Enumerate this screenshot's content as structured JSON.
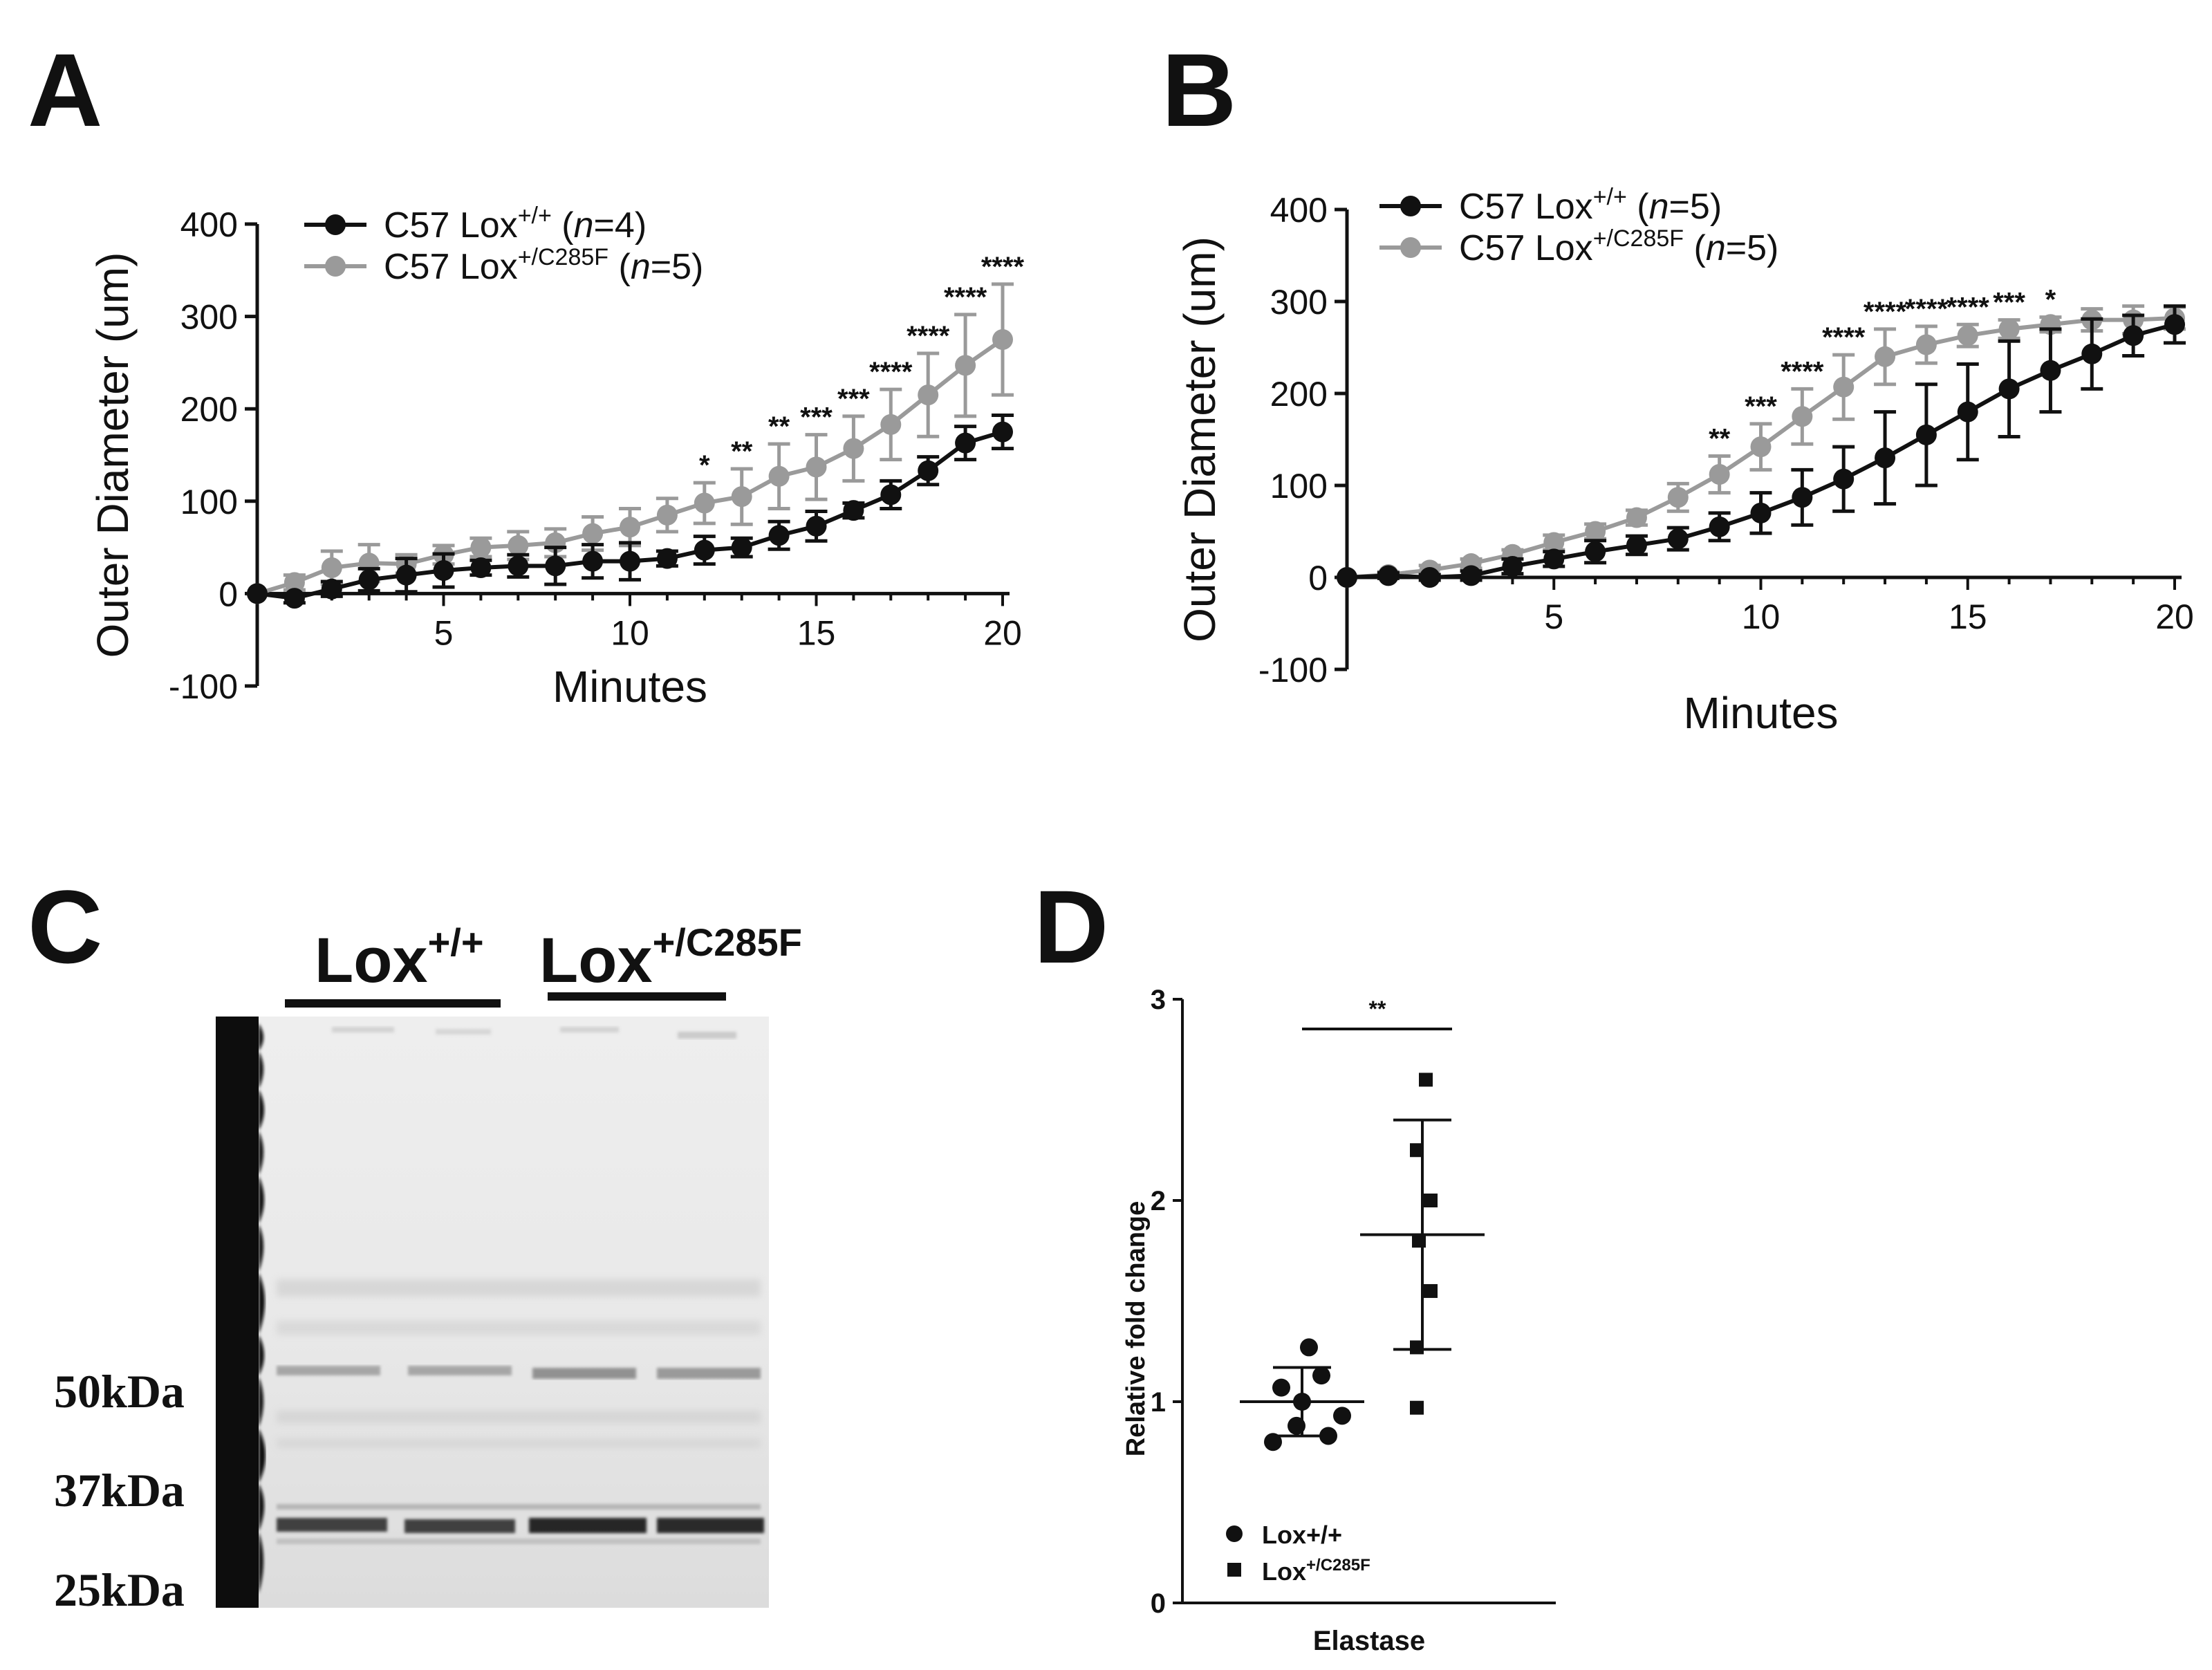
{
  "panels": [
    "A",
    "B",
    "C",
    "D"
  ],
  "chart_data": [
    {
      "panel": "A",
      "type": "line",
      "xlabel": "Minutes",
      "ylabel": "Outer Diameter (um)",
      "xticks": [
        5,
        10,
        15,
        20
      ],
      "yticks": [
        -100,
        0,
        100,
        200,
        300,
        400
      ],
      "xlim": [
        0,
        20
      ],
      "ylim": [
        -100,
        400
      ],
      "legend_position": "top-left",
      "x": [
        0,
        1,
        2,
        3,
        4,
        5,
        6,
        7,
        8,
        9,
        10,
        11,
        12,
        13,
        14,
        15,
        16,
        17,
        18,
        19,
        20
      ],
      "series": [
        {
          "name": "C57 Lox",
          "superscript": "+/+",
          "n_label": "(",
          "n_italic": "n",
          "n_value": "=4)",
          "color": "#111111",
          "values": [
            0,
            -5,
            5,
            15,
            20,
            25,
            28,
            30,
            30,
            35,
            35,
            38,
            47,
            50,
            63,
            73,
            90,
            107,
            133,
            163,
            175
          ],
          "errors": [
            0,
            5,
            8,
            12,
            18,
            18,
            8,
            12,
            20,
            18,
            20,
            8,
            15,
            10,
            15,
            16,
            8,
            15,
            15,
            18,
            18
          ]
        },
        {
          "name": "C57 Lox",
          "superscript": "+/C285F",
          "n_label": "(",
          "n_italic": "n",
          "n_value": "=5)",
          "color": "#9a9a9a",
          "values": [
            0,
            12,
            28,
            33,
            32,
            42,
            50,
            52,
            55,
            65,
            72,
            85,
            98,
            105,
            127,
            137,
            157,
            183,
            215,
            247,
            275
          ],
          "errors": [
            0,
            8,
            18,
            20,
            10,
            10,
            10,
            15,
            15,
            18,
            20,
            18,
            22,
            30,
            35,
            35,
            35,
            38,
            45,
            55,
            60
          ]
        }
      ],
      "significance": [
        {
          "x": 12,
          "label": "*"
        },
        {
          "x": 13,
          "label": "**"
        },
        {
          "x": 14,
          "label": "**"
        },
        {
          "x": 15,
          "label": "***"
        },
        {
          "x": 16,
          "label": "***"
        },
        {
          "x": 17,
          "label": "****"
        },
        {
          "x": 18,
          "label": "****"
        },
        {
          "x": 19,
          "label": "****"
        },
        {
          "x": 20,
          "label": "****"
        }
      ]
    },
    {
      "panel": "B",
      "type": "line",
      "xlabel": "Minutes",
      "ylabel": "Outer Diameter (um)",
      "xticks": [
        5,
        10,
        15,
        20
      ],
      "yticks": [
        -100,
        0,
        100,
        200,
        300,
        400
      ],
      "xlim": [
        0,
        20
      ],
      "ylim": [
        -100,
        400
      ],
      "legend_position": "top-left",
      "x": [
        0,
        1,
        2,
        3,
        4,
        5,
        6,
        7,
        8,
        9,
        10,
        11,
        12,
        13,
        14,
        15,
        16,
        17,
        18,
        19,
        20
      ],
      "series": [
        {
          "name": "C57 Lox",
          "superscript": "+/+",
          "n_label": "(",
          "n_italic": "n",
          "n_value": "=5)",
          "color": "#111111",
          "values": [
            0,
            2,
            0,
            2,
            12,
            20,
            28,
            35,
            42,
            55,
            70,
            87,
            107,
            130,
            155,
            180,
            205,
            225,
            243,
            263,
            275
          ],
          "errors": [
            0,
            3,
            3,
            5,
            8,
            8,
            12,
            10,
            12,
            15,
            22,
            30,
            35,
            50,
            55,
            52,
            52,
            45,
            38,
            22,
            20
          ]
        },
        {
          "name": "C57 Lox",
          "superscript": "+/C285F",
          "n_label": "(",
          "n_italic": "n",
          "n_value": "=5)",
          "color": "#9a9a9a",
          "values": [
            0,
            3,
            8,
            15,
            25,
            38,
            50,
            65,
            87,
            112,
            142,
            175,
            207,
            240,
            253,
            263,
            270,
            275,
            280,
            280,
            282
          ],
          "errors": [
            0,
            3,
            5,
            5,
            5,
            8,
            8,
            8,
            15,
            20,
            25,
            30,
            35,
            30,
            20,
            12,
            10,
            8,
            12,
            15,
            12
          ]
        }
      ],
      "significance": [
        {
          "x": 9,
          "label": "**"
        },
        {
          "x": 10,
          "label": "***"
        },
        {
          "x": 11,
          "label": "****"
        },
        {
          "x": 12,
          "label": "****"
        },
        {
          "x": 13,
          "label": "****"
        },
        {
          "x": 14,
          "label": "****"
        },
        {
          "x": 15,
          "label": "****"
        },
        {
          "x": 16,
          "label": "***"
        },
        {
          "x": 17,
          "label": "*"
        }
      ]
    },
    {
      "panel": "D",
      "type": "scatter",
      "xlabel": "Elastase",
      "ylabel": "Relative fold change",
      "yticks": [
        0,
        1,
        2,
        3
      ],
      "ylim": [
        0,
        3
      ],
      "legend_position": "bottom-left",
      "series": [
        {
          "name": "Lox+/+",
          "marker": "circle",
          "color": "#111111",
          "values": [
            0.8,
            0.83,
            0.88,
            0.93,
            1.0,
            1.07,
            1.13,
            1.27
          ],
          "mean": 1.0,
          "sd": 0.17
        },
        {
          "name": "Lox",
          "superscript": "+/C285F",
          "marker": "square",
          "color": "#111111",
          "values": [
            0.97,
            1.27,
            1.55,
            1.8,
            2.0,
            2.25,
            2.6
          ],
          "mean": 1.83,
          "sd": 0.57
        }
      ],
      "significance": [
        {
          "label": "**",
          "between": [
            0,
            1
          ]
        }
      ]
    }
  ],
  "blot": {
    "panel": "C",
    "group_labels": [
      {
        "base": "Lox",
        "superscript": "+/+"
      },
      {
        "base": "Lox",
        "superscript": "+/C285F"
      }
    ],
    "markers": [
      "50kDa",
      "37kDa",
      "25kDa"
    ]
  }
}
